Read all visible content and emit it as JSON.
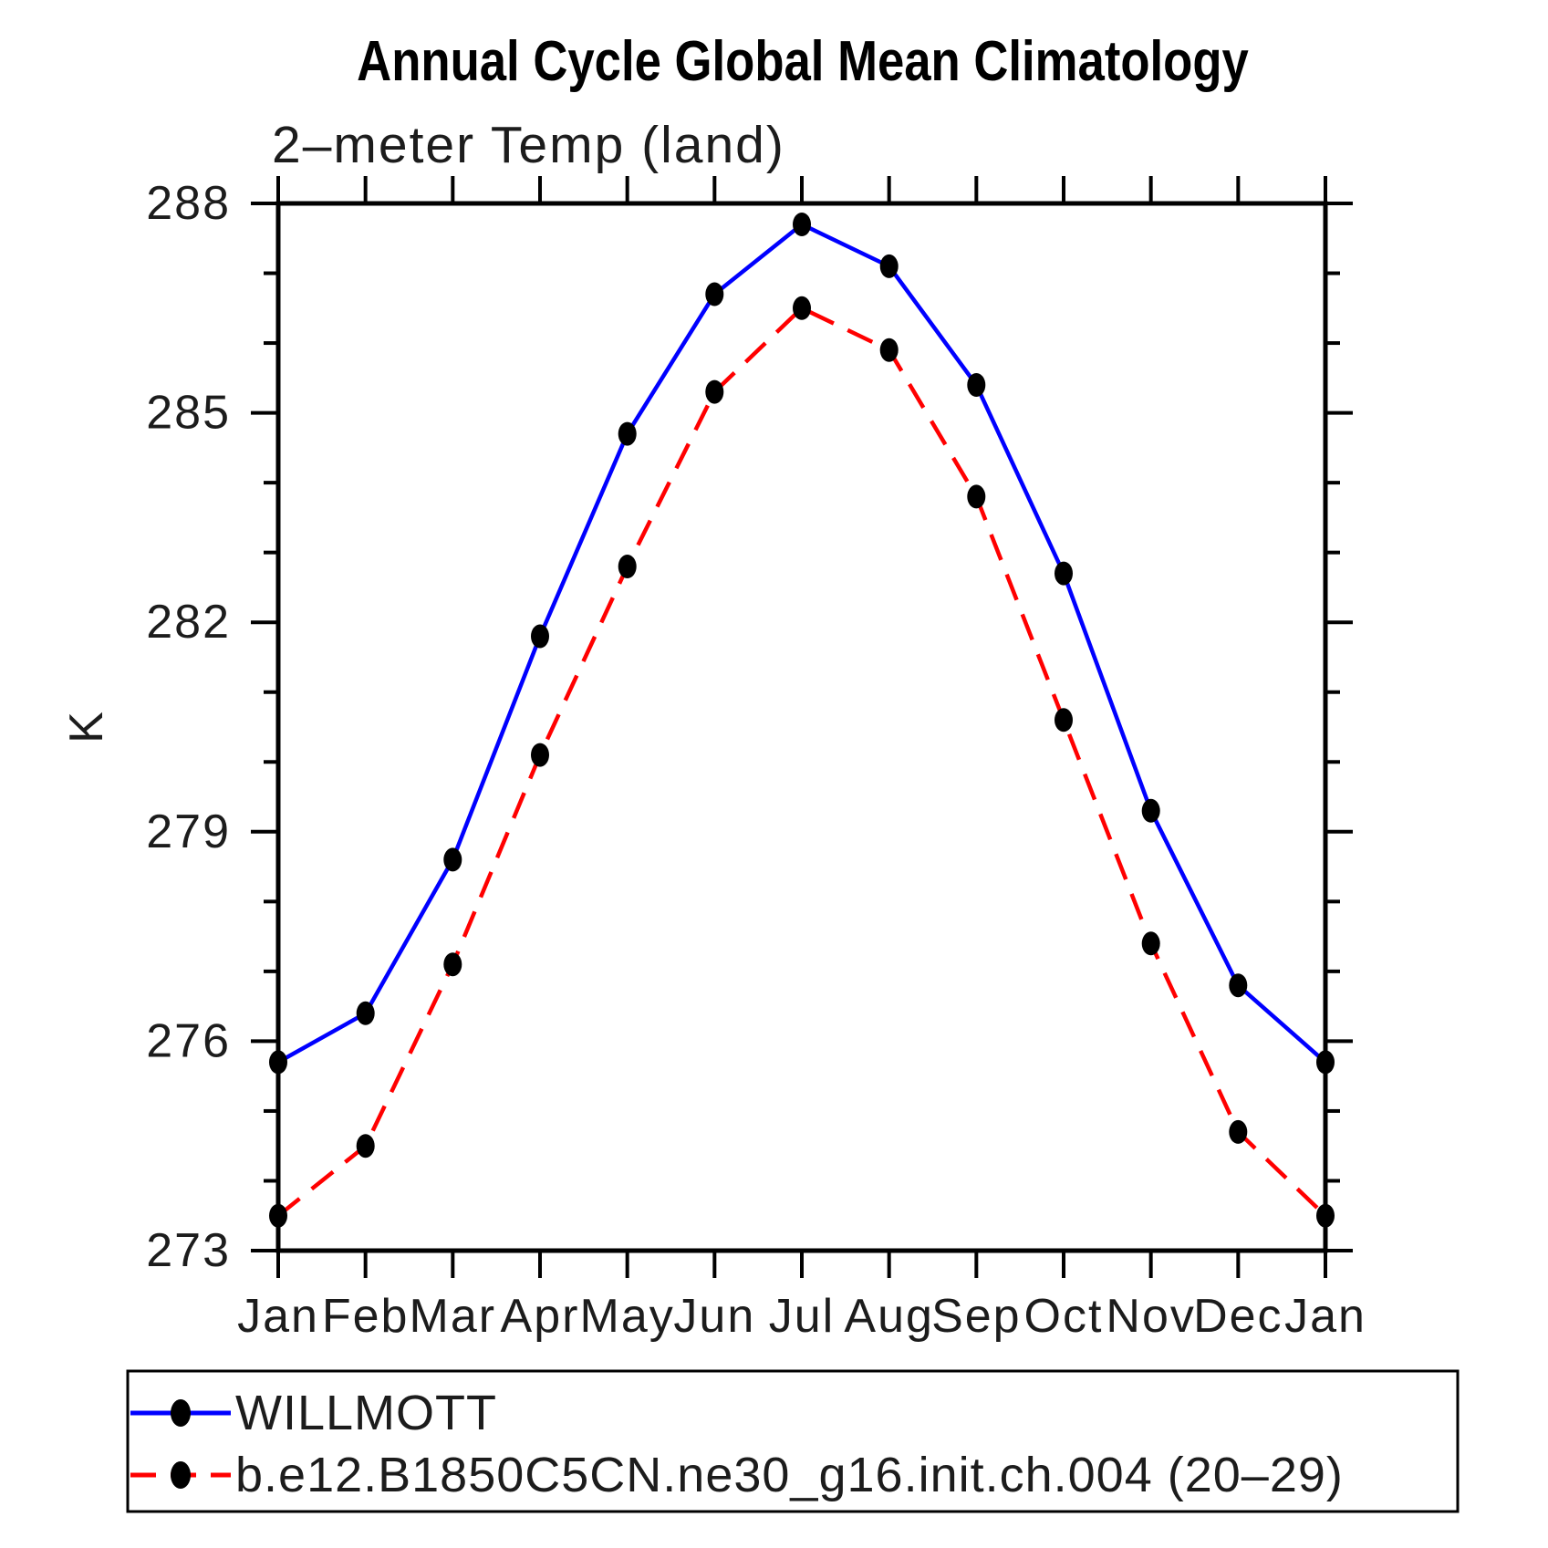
{
  "page": {
    "background": "#ffffff"
  },
  "chart_data": {
    "type": "line",
    "title": "Annual Cycle Global Mean Climatology",
    "subtitle": "2–meter Temp (land)",
    "ylabel": "K",
    "xlabel": "",
    "x_categories": [
      "Jan",
      "Feb",
      "Mar",
      "Apr",
      "May",
      "Jun",
      "Jul",
      "Aug",
      "Sep",
      "Oct",
      "Nov",
      "Dec",
      "Jan"
    ],
    "ylim": [
      273,
      288
    ],
    "y_major_ticks": [
      273,
      276,
      279,
      282,
      285,
      288
    ],
    "y_minor_tick_step": 1,
    "grid": false,
    "axis_color": "#000000",
    "legend_position": "bottom-left-box",
    "series": [
      {
        "name": "WILLMOTT",
        "color": "#0000ff",
        "line_style": "solid",
        "marker": "filled-dot",
        "marker_color": "#000000",
        "values": [
          275.7,
          276.4,
          278.6,
          281.8,
          284.7,
          286.7,
          287.7,
          287.1,
          285.4,
          282.7,
          279.3,
          276.8,
          275.7
        ]
      },
      {
        "name": "b.e12.B1850C5CN.ne30_g16.init.ch.004 (20–29)",
        "color": "#ff0000",
        "line_style": "dashed",
        "marker": "filled-dot",
        "marker_color": "#000000",
        "values": [
          273.5,
          274.5,
          277.1,
          280.1,
          282.8,
          285.3,
          286.5,
          285.9,
          283.8,
          280.6,
          277.4,
          274.7,
          273.5
        ]
      }
    ]
  }
}
